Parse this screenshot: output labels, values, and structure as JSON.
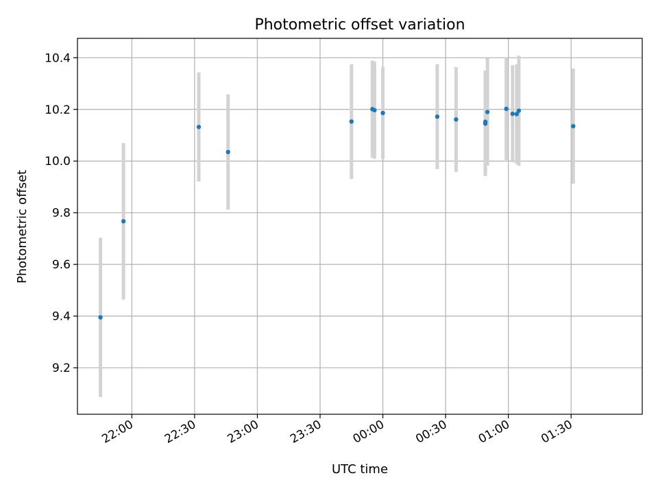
{
  "chart_data": {
    "type": "scatter",
    "title": "Photometric offset variation",
    "xlabel": "UTC time",
    "ylabel": "Photometric offset",
    "xlim": [
      "21:34",
      "02:04"
    ],
    "ylim": [
      9.02,
      10.475
    ],
    "x_ticks": [
      "22:00",
      "22:30",
      "23:00",
      "23:30",
      "00:00",
      "00:30",
      "01:00",
      "01:30"
    ],
    "y_ticks": [
      "9.2",
      "9.4",
      "9.6",
      "9.8",
      "10.0",
      "10.2",
      "10.4"
    ],
    "grid": true,
    "colors": {
      "point": "#1f77b4",
      "errorbar": "#d3d3d3",
      "grid": "#b0b0b0"
    },
    "points": [
      {
        "x": "21:45",
        "y": 9.395,
        "err": 0.308
      },
      {
        "x": "21:56",
        "y": 9.767,
        "err": 0.303
      },
      {
        "x": "22:32",
        "y": 10.132,
        "err": 0.211
      },
      {
        "x": "22:46",
        "y": 10.035,
        "err": 0.223
      },
      {
        "x": "23:45",
        "y": 10.153,
        "err": 0.222
      },
      {
        "x": "23:55",
        "y": 10.201,
        "err": 0.188
      },
      {
        "x": "23:56",
        "y": 10.197,
        "err": 0.188
      },
      {
        "x": "00:00",
        "y": 10.186,
        "err": 0.178
      },
      {
        "x": "00:26",
        "y": 10.172,
        "err": 0.203
      },
      {
        "x": "00:35",
        "y": 10.161,
        "err": 0.203
      },
      {
        "x": "00:49",
        "y": 10.145,
        "err": 0.203
      },
      {
        "x": "00:49",
        "y": 10.152,
        "err": 0.198
      },
      {
        "x": "00:50",
        "y": 10.19,
        "err": 0.208
      },
      {
        "x": "00:59",
        "y": 10.202,
        "err": 0.198
      },
      {
        "x": "01:02",
        "y": 10.183,
        "err": 0.188
      },
      {
        "x": "01:04",
        "y": 10.182,
        "err": 0.193
      },
      {
        "x": "01:05",
        "y": 10.195,
        "err": 0.213
      },
      {
        "x": "01:31",
        "y": 10.135,
        "err": 0.223
      }
    ]
  }
}
